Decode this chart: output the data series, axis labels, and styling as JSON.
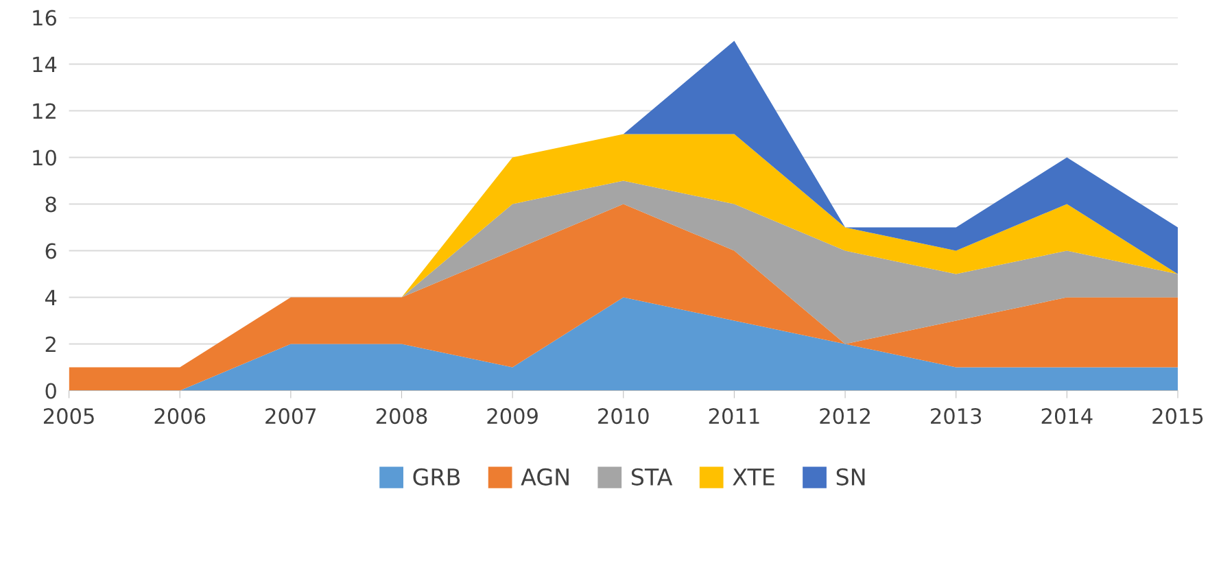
{
  "chart_data": {
    "type": "area",
    "stacked": true,
    "categories": [
      "2005",
      "2006",
      "2007",
      "2008",
      "2009",
      "2010",
      "2011",
      "2012",
      "2013",
      "2014",
      "2015"
    ],
    "series": [
      {
        "name": "GRB",
        "color": "#5b9bd5",
        "values": [
          0,
          0,
          2,
          2,
          1,
          4,
          3,
          2,
          1,
          1,
          1
        ]
      },
      {
        "name": "AGN",
        "color": "#ed7d31",
        "values": [
          1,
          1,
          2,
          2,
          5,
          4,
          3,
          0,
          2,
          3,
          3
        ]
      },
      {
        "name": "STA",
        "color": "#a5a5a5",
        "values": [
          0,
          0,
          0,
          0,
          2,
          1,
          2,
          4,
          2,
          2,
          1
        ]
      },
      {
        "name": "XTE",
        "color": "#ffc000",
        "values": [
          0,
          0,
          0,
          0,
          2,
          2,
          3,
          1,
          1,
          2,
          0
        ]
      },
      {
        "name": "SN",
        "color": "#4472c4",
        "values": [
          0,
          0,
          0,
          0,
          0,
          0,
          4,
          0,
          1,
          2,
          2
        ]
      }
    ],
    "ylim": [
      0,
      16
    ],
    "yticks": [
      0,
      2,
      4,
      6,
      8,
      10,
      12,
      14,
      16
    ],
    "grid": "y",
    "legend": "bottom"
  }
}
